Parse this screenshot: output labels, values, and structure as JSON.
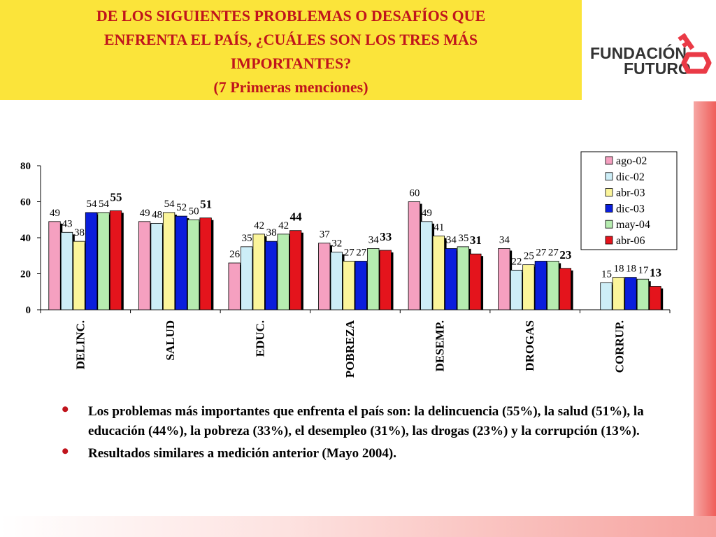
{
  "header": {
    "title_line1": "DE LOS SIGUIENTES PROBLEMAS O DESAFÍOS QUE",
    "title_line2": "ENFRENTA EL PAÍS, ¿CUÁLES SON LOS TRES MÁS",
    "title_line3": "IMPORTANTES?",
    "title_line4": "(7 Primeras menciones)"
  },
  "logo": {
    "line1": "FUNDACIÓN",
    "line2": "FUTURO",
    "icon": "key-icon"
  },
  "chart_data": {
    "type": "bar",
    "categories": [
      "DELINC.",
      "SALUD",
      "EDUC.",
      "POBREZA",
      "DESEMP.",
      "DROGAS",
      "CORRUP."
    ],
    "series": [
      {
        "name": "ago-02",
        "color": "#f5a0c0",
        "values": [
          49,
          49,
          26,
          37,
          60,
          34,
          null
        ]
      },
      {
        "name": "dic-02",
        "color": "#cdeef7",
        "values": [
          43,
          48,
          35,
          32,
          49,
          22,
          15
        ]
      },
      {
        "name": "abr-03",
        "color": "#fbf59a",
        "values": [
          38,
          54,
          42,
          27,
          41,
          25,
          18
        ]
      },
      {
        "name": "dic-03",
        "color": "#0a1edc",
        "values": [
          54,
          52,
          38,
          27,
          34,
          27,
          18
        ]
      },
      {
        "name": "may-04",
        "color": "#b6ecb0",
        "values": [
          54,
          50,
          42,
          34,
          35,
          27,
          17
        ]
      },
      {
        "name": "abr-06",
        "color": "#e4141c",
        "values": [
          55,
          51,
          44,
          33,
          31,
          23,
          13
        ]
      }
    ],
    "ylim": [
      0,
      80
    ],
    "yticks": [
      0,
      20,
      40,
      60,
      80
    ],
    "legend": "top-right"
  },
  "bullets": [
    "Los problemas más importantes que enfrenta el país son: la delincuencia (55%), la salud (51%), la educación (44%), la pobreza (33%), el desempleo (31%), las drogas (23%) y la corrupción (13%).",
    "Resultados similares a medición anterior (Mayo 2004)."
  ]
}
